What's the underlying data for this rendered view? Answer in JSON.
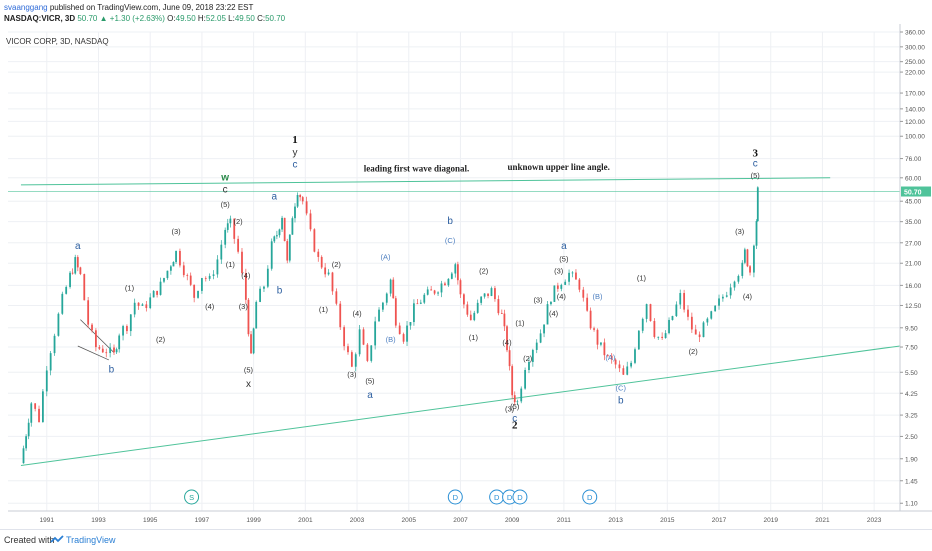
{
  "header": {
    "publisher": "svaanggang",
    "published_text": "published on TradingView.com, June 09, 2018 23:22 EST",
    "symbol": "NASDAQ:VICR, 3D",
    "last": "50.70",
    "change": "+1.30 (+2.63%)",
    "open_label": "O:",
    "open": "49.50",
    "high_label": "H:",
    "high": "52.05",
    "low_label": "L:",
    "low": "49.50",
    "close_label": "C:",
    "close": "50.70"
  },
  "footer": {
    "created_with": "Created with",
    "brand": "TradingView"
  },
  "colors": {
    "up": "#26a69a",
    "down": "#ef5350",
    "trendline": "#4fc39a",
    "wave_label": "#2d5fa0",
    "price_badge": "#4fc39a",
    "event_circle": "#2a8fd4"
  },
  "chart_data": {
    "type": "candlestick",
    "title": "VICOR CORP, 3D, NASDAQ",
    "scale": "log",
    "ylim": [
      1.0,
      360.0
    ],
    "xlim": [
      1989.5,
      2024.0
    ],
    "y_ticks": [
      "360.00",
      "300.00",
      "250.00",
      "220.00",
      "170.00",
      "140.00",
      "120.00",
      "100.00",
      "76.00",
      "60.00",
      "45.00",
      "35.00",
      "27.00",
      "21.00",
      "16.00",
      "12.50",
      "9.50",
      "7.50",
      "5.50",
      "4.25",
      "3.25",
      "2.50",
      "1.90",
      "1.45",
      "1.10"
    ],
    "x_ticks": [
      "1991",
      "1993",
      "1995",
      "1997",
      "1999",
      "2001",
      "2003",
      "2005",
      "2007",
      "2009",
      "2011",
      "2013",
      "2015",
      "2017",
      "2019",
      "2021",
      "2023"
    ],
    "last_price_label": "50.70",
    "price_path": [
      [
        1990.0,
        1.8
      ],
      [
        1990.2,
        2.6
      ],
      [
        1990.4,
        3.8
      ],
      [
        1990.7,
        3.1
      ],
      [
        1991.0,
        6.0
      ],
      [
        1991.3,
        9.0
      ],
      [
        1991.6,
        13.5
      ],
      [
        1991.9,
        18.0
      ],
      [
        1992.1,
        21.5
      ],
      [
        1992.3,
        18.0
      ],
      [
        1992.6,
        10.0
      ],
      [
        1992.9,
        7.5
      ],
      [
        1993.3,
        7.2
      ],
      [
        1993.6,
        6.8
      ],
      [
        1993.8,
        9.0
      ],
      [
        1994.1,
        9.8
      ],
      [
        1994.4,
        13.0
      ],
      [
        1994.7,
        12.0
      ],
      [
        1995.0,
        13.5
      ],
      [
        1995.4,
        16.0
      ],
      [
        1995.8,
        21.0
      ],
      [
        1996.0,
        24.0
      ],
      [
        1996.3,
        19.5
      ],
      [
        1996.7,
        14.0
      ],
      [
        1997.0,
        18.0
      ],
      [
        1997.3,
        17.0
      ],
      [
        1997.6,
        22.0
      ],
      [
        1997.9,
        32.0
      ],
      [
        1998.1,
        34.0
      ],
      [
        1998.4,
        24.0
      ],
      [
        1998.7,
        13.5
      ],
      [
        1998.9,
        6.5
      ],
      [
        1999.1,
        13.0
      ],
      [
        1999.4,
        16.0
      ],
      [
        1999.7,
        26.0
      ],
      [
        1999.9,
        30.0
      ],
      [
        2000.1,
        38.0
      ],
      [
        2000.3,
        21.0
      ],
      [
        2000.5,
        38.0
      ],
      [
        2000.7,
        52.0
      ],
      [
        2000.9,
        45.0
      ],
      [
        2001.2,
        30.0
      ],
      [
        2001.5,
        22.0
      ],
      [
        2001.9,
        18.0
      ],
      [
        2002.2,
        12.0
      ],
      [
        2002.5,
        8.0
      ],
      [
        2002.8,
        5.8
      ],
      [
        2003.1,
        9.0
      ],
      [
        2003.4,
        6.0
      ],
      [
        2003.7,
        10.5
      ],
      [
        2004.0,
        13.0
      ],
      [
        2004.3,
        17.0
      ],
      [
        2004.5,
        10.5
      ],
      [
        2004.8,
        8.5
      ],
      [
        2005.2,
        12.0
      ],
      [
        2005.6,
        14.0
      ],
      [
        2006.0,
        15.0
      ],
      [
        2006.4,
        17.0
      ],
      [
        2006.8,
        21.0
      ],
      [
        2007.0,
        14.0
      ],
      [
        2007.4,
        10.5
      ],
      [
        2007.8,
        13.5
      ],
      [
        2008.2,
        15.0
      ],
      [
        2008.6,
        11.0
      ],
      [
        2008.8,
        7.5
      ],
      [
        2009.0,
        4.2
      ],
      [
        2009.2,
        3.8
      ],
      [
        2009.5,
        6.0
      ],
      [
        2009.8,
        7.5
      ],
      [
        2010.1,
        9.0
      ],
      [
        2010.5,
        14.0
      ],
      [
        2010.9,
        17.0
      ],
      [
        2011.2,
        18.5
      ],
      [
        2011.6,
        16.0
      ],
      [
        2011.9,
        11.0
      ],
      [
        2012.3,
        8.0
      ],
      [
        2012.7,
        6.5
      ],
      [
        2013.0,
        6.0
      ],
      [
        2013.3,
        5.2
      ],
      [
        2013.6,
        6.2
      ],
      [
        2013.9,
        9.5
      ],
      [
        2014.2,
        13.0
      ],
      [
        2014.5,
        9.0
      ],
      [
        2014.8,
        8.0
      ],
      [
        2015.2,
        11.0
      ],
      [
        2015.5,
        14.0
      ],
      [
        2015.8,
        10.5
      ],
      [
        2016.1,
        8.5
      ],
      [
        2016.4,
        9.5
      ],
      [
        2016.7,
        11.0
      ],
      [
        2017.0,
        13.0
      ],
      [
        2017.3,
        15.0
      ],
      [
        2017.6,
        18.0
      ],
      [
        2017.9,
        20.0
      ],
      [
        2018.0,
        24.0
      ],
      [
        2018.2,
        19.0
      ],
      [
        2018.35,
        28.0
      ],
      [
        2018.45,
        36.0
      ],
      [
        2018.5,
        50.7
      ]
    ],
    "trendlines": [
      {
        "from": [
          1990.0,
          1.75
        ],
        "to": [
          2024.0,
          7.6
        ]
      },
      {
        "from": [
          1990.0,
          55.0
        ],
        "to": [
          2021.3,
          60.0
        ]
      }
    ],
    "triangle": [
      [
        1992.3,
        10.5
      ],
      [
        1993.6,
        7.0
      ],
      [
        1992.2,
        7.6
      ],
      [
        1993.4,
        6.4
      ]
    ],
    "annotations": [
      {
        "text": "leading first wave diagonal.",
        "x": 2005.3,
        "y": 65,
        "style": "serif-bold"
      },
      {
        "text": "unknown upper line angle.",
        "x": 2010.8,
        "y": 66,
        "style": "serif-bold"
      }
    ],
    "wave_labels": [
      {
        "text": "a",
        "x": 1992.2,
        "y": 25.0,
        "color": "blue"
      },
      {
        "text": "b",
        "x": 1993.5,
        "y": 5.5,
        "color": "blue"
      },
      {
        "text": "(1)",
        "x": 1994.2,
        "y": 15.0,
        "color": "dark"
      },
      {
        "text": "(2)",
        "x": 1995.4,
        "y": 8.0,
        "color": "dark"
      },
      {
        "text": "(3)",
        "x": 1996.0,
        "y": 30.0,
        "color": "dark"
      },
      {
        "text": "(4)",
        "x": 1997.3,
        "y": 12.0,
        "color": "dark"
      },
      {
        "text": "(5)",
        "x": 1997.9,
        "y": 42.0,
        "color": "dark"
      },
      {
        "text": "c",
        "x": 1997.9,
        "y": 50.0,
        "color": "dark"
      },
      {
        "text": "w",
        "x": 1997.9,
        "y": 58.0,
        "color": "green"
      },
      {
        "text": "(2)",
        "x": 1998.4,
        "y": 34.0,
        "color": "dark"
      },
      {
        "text": "(1)",
        "x": 1998.1,
        "y": 20.0,
        "color": "dark"
      },
      {
        "text": "(3)",
        "x": 1998.6,
        "y": 12.0,
        "color": "dark"
      },
      {
        "text": "(4)",
        "x": 1998.7,
        "y": 17.5,
        "color": "dark"
      },
      {
        "text": "(5)",
        "x": 1998.8,
        "y": 5.5,
        "color": "dark"
      },
      {
        "text": "x",
        "x": 1998.8,
        "y": 4.6,
        "color": "dark"
      },
      {
        "text": "a",
        "x": 1999.8,
        "y": 46.0,
        "color": "blue"
      },
      {
        "text": "b",
        "x": 2000.0,
        "y": 14.5,
        "color": "blue"
      },
      {
        "text": "1",
        "x": 2000.6,
        "y": 92.0,
        "color": "dark-serif"
      },
      {
        "text": "y",
        "x": 2000.6,
        "y": 79.0,
        "color": "dark"
      },
      {
        "text": "c",
        "x": 2000.6,
        "y": 68.0,
        "color": "blue"
      },
      {
        "text": "(2)",
        "x": 2002.2,
        "y": 20.0,
        "color": "dark"
      },
      {
        "text": "(1)",
        "x": 2001.7,
        "y": 11.5,
        "color": "dark"
      },
      {
        "text": "(4)",
        "x": 2003.0,
        "y": 11.0,
        "color": "dark"
      },
      {
        "text": "(3)",
        "x": 2002.8,
        "y": 5.2,
        "color": "dark"
      },
      {
        "text": "(5)",
        "x": 2003.5,
        "y": 4.8,
        "color": "dark"
      },
      {
        "text": "a",
        "x": 2003.5,
        "y": 4.0,
        "color": "blue"
      },
      {
        "text": "(A)",
        "x": 2004.1,
        "y": 22.0,
        "color": "blue-light"
      },
      {
        "text": "(B)",
        "x": 2004.3,
        "y": 8.0,
        "color": "blue-light"
      },
      {
        "text": "b",
        "x": 2006.6,
        "y": 34.0,
        "color": "blue"
      },
      {
        "text": "(C)",
        "x": 2006.6,
        "y": 27.0,
        "color": "blue-light"
      },
      {
        "text": "(2)",
        "x": 2007.9,
        "y": 18.5,
        "color": "dark"
      },
      {
        "text": "(1)",
        "x": 2007.5,
        "y": 8.2,
        "color": "dark"
      },
      {
        "text": "(4)",
        "x": 2008.8,
        "y": 7.7,
        "color": "dark"
      },
      {
        "text": "(2)",
        "x": 2009.6,
        "y": 6.3,
        "color": "dark"
      },
      {
        "text": "(1)",
        "x": 2009.3,
        "y": 9.8,
        "color": "dark"
      },
      {
        "text": "(3)",
        "x": 2008.9,
        "y": 3.4,
        "color": "dark"
      },
      {
        "text": "(5)",
        "x": 2009.1,
        "y": 3.5,
        "color": "dark"
      },
      {
        "text": "c",
        "x": 2009.1,
        "y": 3.0,
        "color": "blue"
      },
      {
        "text": "2",
        "x": 2009.1,
        "y": 2.75,
        "color": "dark-serif"
      },
      {
        "text": "(3)",
        "x": 2010.0,
        "y": 13.0,
        "color": "dark"
      },
      {
        "text": "(4)",
        "x": 2010.6,
        "y": 11.0,
        "color": "dark"
      },
      {
        "text": "(3)",
        "x": 2010.8,
        "y": 18.5,
        "color": "dark"
      },
      {
        "text": "(5)",
        "x": 2011.0,
        "y": 21.5,
        "color": "dark"
      },
      {
        "text": "a",
        "x": 2011.0,
        "y": 25.0,
        "color": "blue"
      },
      {
        "text": "(4)",
        "x": 2010.9,
        "y": 13.5,
        "color": "dark"
      },
      {
        "text": "(B)",
        "x": 2012.3,
        "y": 13.5,
        "color": "blue-light"
      },
      {
        "text": "(A)",
        "x": 2012.8,
        "y": 6.4,
        "color": "blue-light"
      },
      {
        "text": "(C)",
        "x": 2013.2,
        "y": 4.4,
        "color": "blue-light"
      },
      {
        "text": "b",
        "x": 2013.2,
        "y": 3.75,
        "color": "blue"
      },
      {
        "text": "(1)",
        "x": 2014.0,
        "y": 17.0,
        "color": "dark"
      },
      {
        "text": "(2)",
        "x": 2016.0,
        "y": 6.9,
        "color": "dark"
      },
      {
        "text": "(3)",
        "x": 2017.8,
        "y": 30.0,
        "color": "dark"
      },
      {
        "text": "(4)",
        "x": 2018.1,
        "y": 13.5,
        "color": "dark"
      },
      {
        "text": "3",
        "x": 2018.4,
        "y": 78.0,
        "color": "dark-serif"
      },
      {
        "text": "c",
        "x": 2018.4,
        "y": 69.0,
        "color": "blue"
      },
      {
        "text": "(5)",
        "x": 2018.4,
        "y": 60.0,
        "color": "dark"
      }
    ],
    "events": [
      {
        "text": "S",
        "x": 1996.6,
        "style": "split"
      },
      {
        "text": "D",
        "x": 2006.8,
        "style": "dividend"
      },
      {
        "text": "D",
        "x": 2008.4,
        "style": "dividend"
      },
      {
        "text": "D",
        "x": 2008.9,
        "style": "dividend"
      },
      {
        "text": "D",
        "x": 2009.3,
        "style": "dividend"
      },
      {
        "text": "D",
        "x": 2012.0,
        "style": "dividend"
      }
    ]
  }
}
